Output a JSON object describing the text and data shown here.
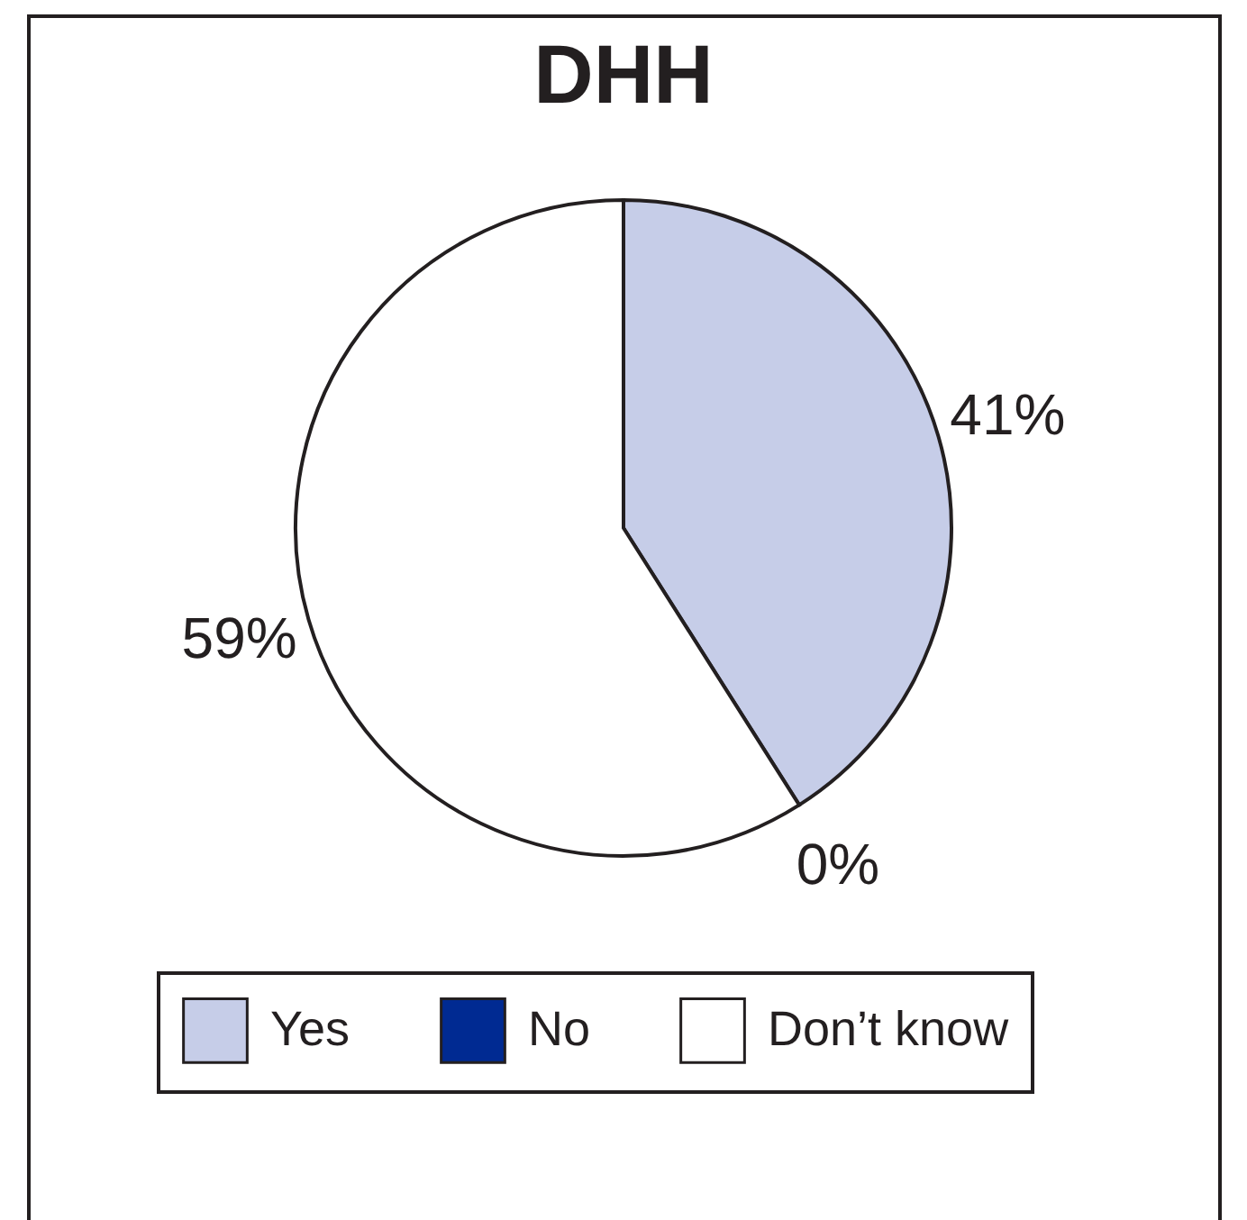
{
  "chart_data": {
    "type": "pie",
    "title": "DHH",
    "categories": [
      "Yes",
      "No",
      "Don’t know"
    ],
    "values": [
      41,
      0,
      59
    ],
    "colors": [
      "#c6cde8",
      "#002a92",
      "#ffffff"
    ],
    "value_labels": [
      "41%",
      "0%",
      "59%"
    ],
    "legend": "bottom"
  }
}
